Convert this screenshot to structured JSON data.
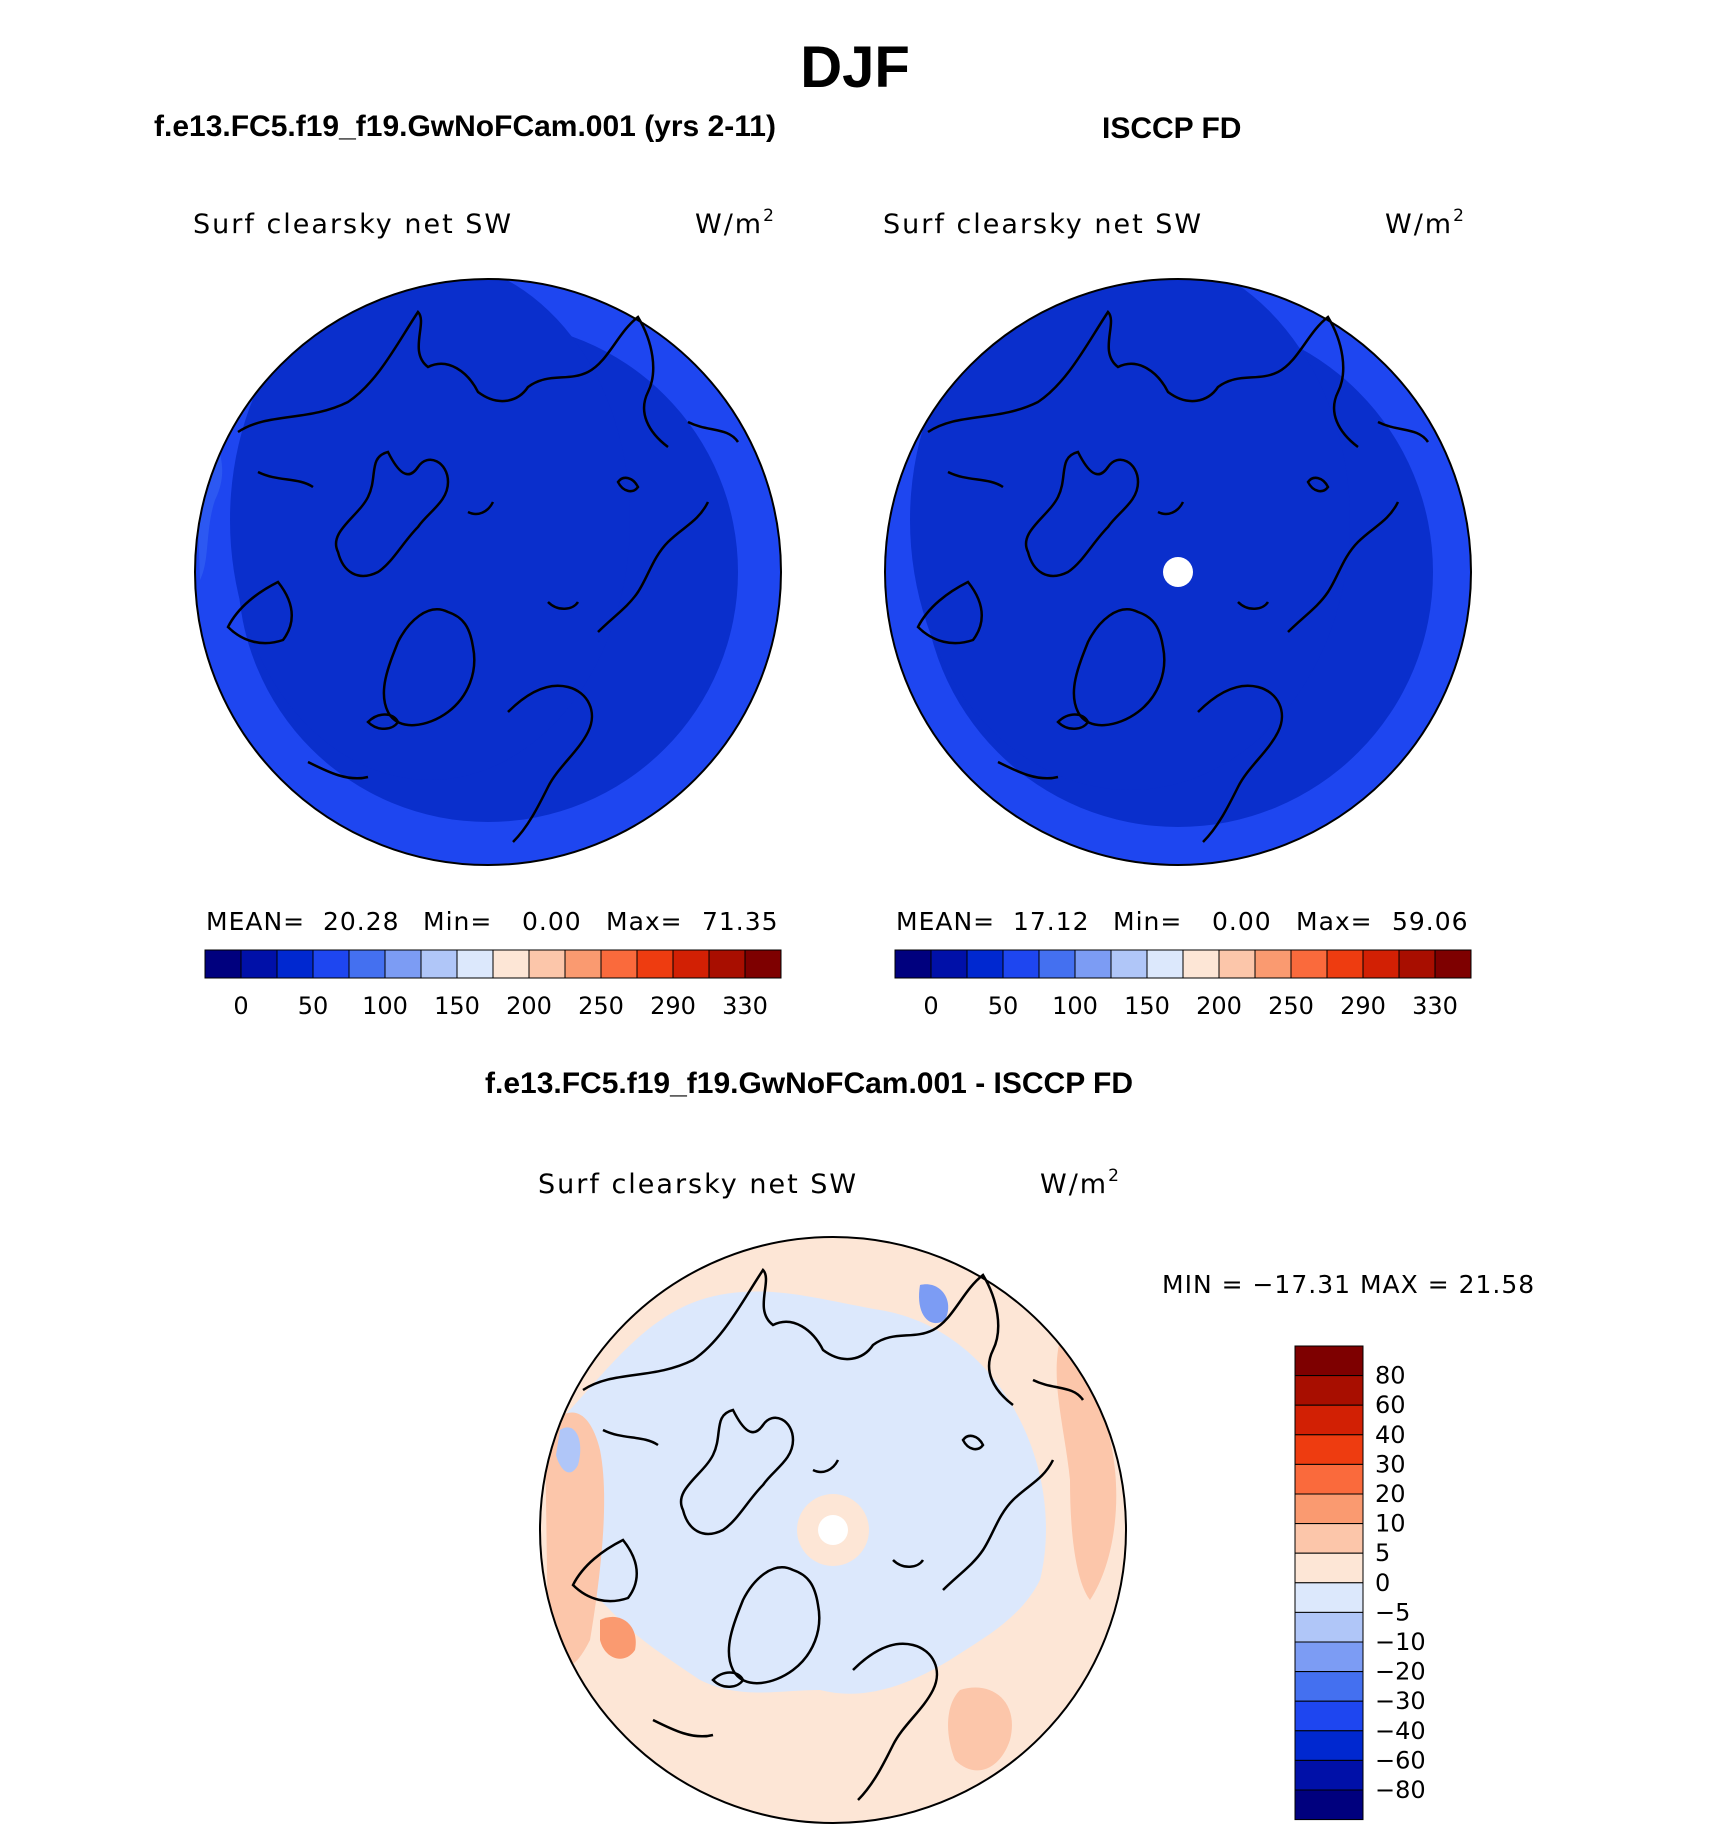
{
  "title": "DJF",
  "panels": [
    {
      "id": "model",
      "subtitle": "f.e13.FC5.f19_f19.GwNoFCam.001 (yrs 2-11)",
      "variable": "Surf clearsky net SW",
      "units": "W/m",
      "units_exp": "2",
      "stats": {
        "mean_label": "MEAN=",
        "mean": "20.28",
        "min_label": "Min=",
        "min": "0.00",
        "max_label": "Max=",
        "max": "71.35"
      }
    },
    {
      "id": "obs",
      "subtitle": "ISCCP FD",
      "variable": "Surf clearsky net SW",
      "units": "W/m",
      "units_exp": "2",
      "stats": {
        "mean_label": "MEAN=",
        "mean": "17.12",
        "min_label": "Min=",
        "min": "0.00",
        "max_label": "Max=",
        "max": "59.06"
      }
    }
  ],
  "abs_colorbar": {
    "colors": [
      "#00007e",
      "#0010a8",
      "#0028d0",
      "#1e46f0",
      "#4470f0",
      "#7c9cf4",
      "#b0c6f8",
      "#dce8fc",
      "#fde6d6",
      "#fcc6aa",
      "#fa9a70",
      "#fa6a3c",
      "#ee3c10",
      "#d22004",
      "#a80e00",
      "#7e0000"
    ],
    "labels": [
      "0",
      "50",
      "100",
      "150",
      "200",
      "250",
      "290",
      "330"
    ]
  },
  "difference": {
    "title": "f.e13.FC5.f19_f19.GwNoFCam.001 - ISCCP FD",
    "variable": "Surf clearsky net SW",
    "units": "W/m",
    "units_exp": "2",
    "range_text": "MIN = −17.31 MAX =  21.58",
    "colorbar": {
      "colors": [
        "#7e0000",
        "#a80e00",
        "#d22004",
        "#ee3c10",
        "#fa6a3c",
        "#fa9a70",
        "#fcc6aa",
        "#fde6d6",
        "#dce8fc",
        "#b0c6f8",
        "#7c9cf4",
        "#4470f0",
        "#1e46f0",
        "#0028d0",
        "#0010a8",
        "#00007e"
      ],
      "labels": [
        "80",
        "60",
        "40",
        "30",
        "20",
        "10",
        "5",
        "0",
        "−5",
        "−10",
        "−20",
        "−30",
        "−40",
        "−60",
        "−80"
      ]
    }
  },
  "map_colors": {
    "abs_dark": "#0a2fcc",
    "abs_mid": "#1e46f0",
    "abs_light": "#2c58f2",
    "diff_neg": "#dce8fc",
    "diff_pos": "#fde6d6",
    "diff_pos2": "#fcc6aa",
    "diff_pos3": "#fa9a70",
    "diff_neg2": "#b0c6f8",
    "diff_neg3": "#7c9cf4"
  }
}
